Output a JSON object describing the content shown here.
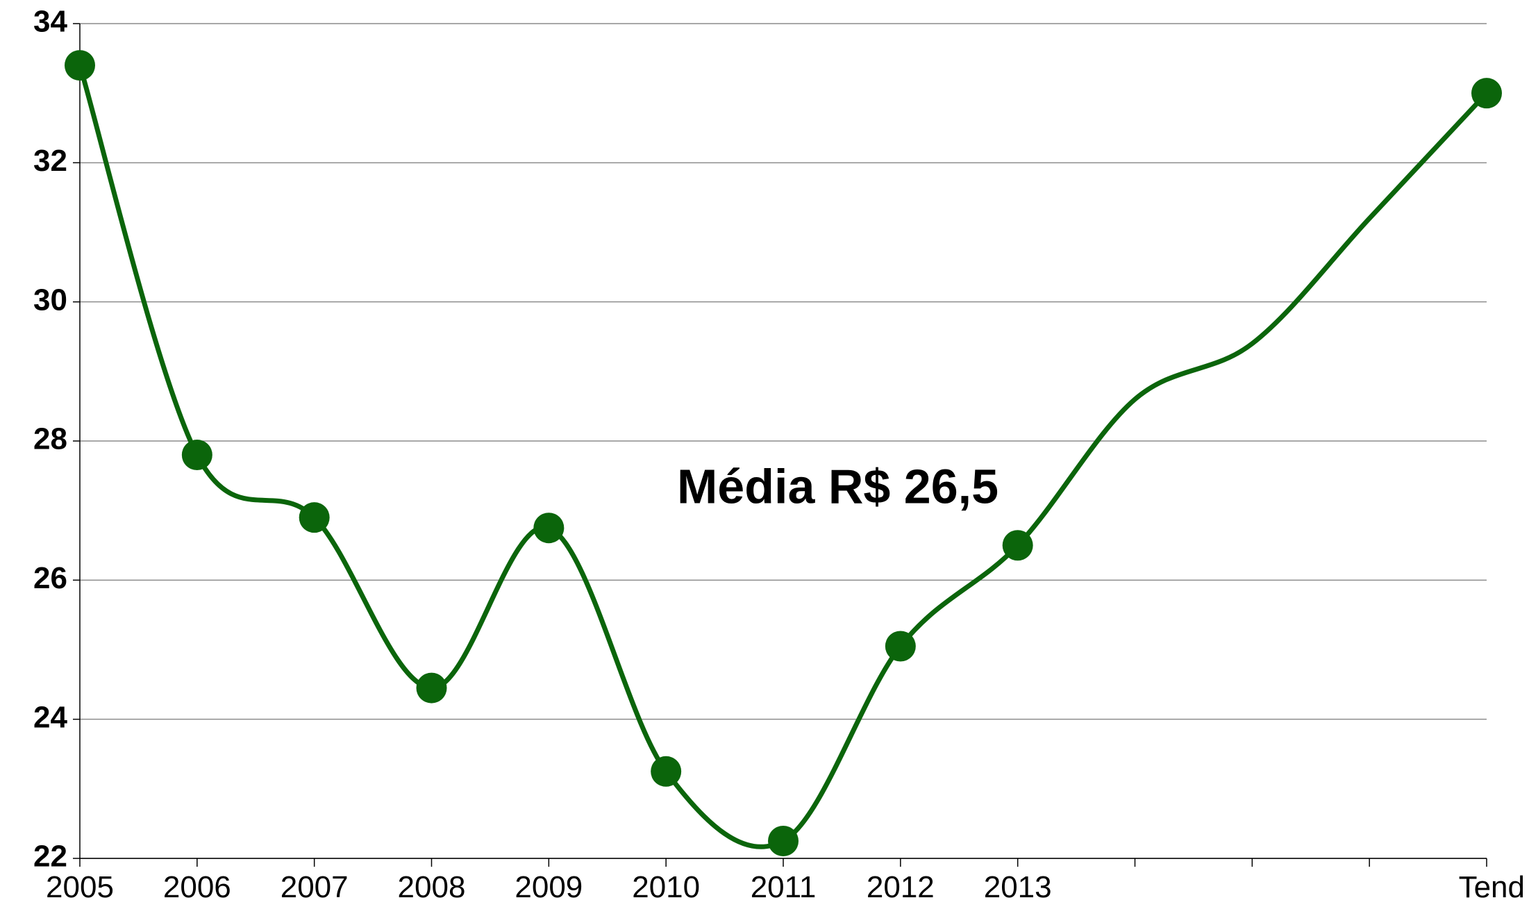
{
  "chart_data": {
    "type": "line",
    "categories": [
      "2005",
      "2006",
      "2007",
      "2008",
      "2009",
      "2010",
      "2011",
      "2012",
      "2013",
      null,
      null,
      null,
      "Tend"
    ],
    "series": [
      {
        "color": "#0b650b",
        "values": [
          33.4,
          27.8,
          26.9,
          24.45,
          26.75,
          23.25,
          22.25,
          25.05,
          26.5,
          28.6,
          29.4,
          31.2,
          33.0
        ],
        "markers": [
          true,
          true,
          true,
          true,
          true,
          true,
          true,
          true,
          true,
          false,
          false,
          false,
          true
        ]
      }
    ],
    "ylim": [
      22,
      34
    ],
    "yticks": [
      22,
      24,
      26,
      28,
      30,
      32,
      34
    ],
    "grid": true,
    "smooth": true,
    "annotations": [
      {
        "text": "Média  R$ 26,5",
        "color": "#0b650b"
      }
    ]
  }
}
